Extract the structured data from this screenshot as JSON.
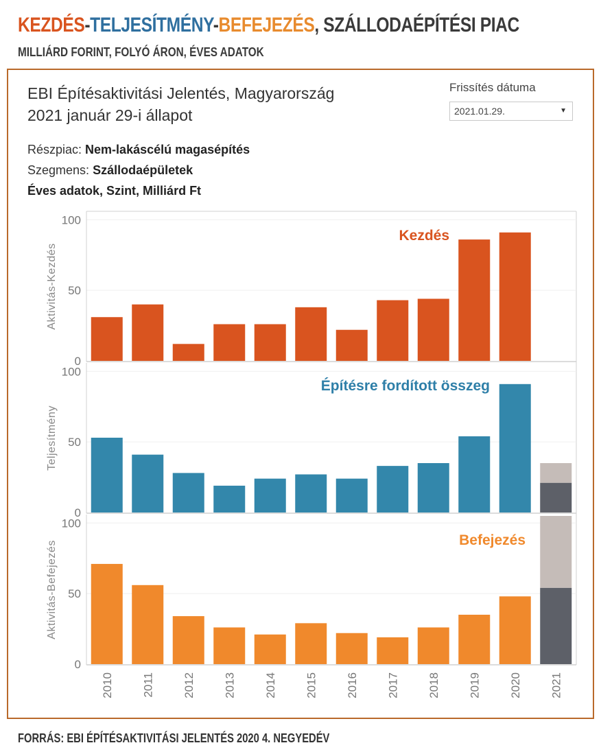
{
  "header": {
    "title_parts": [
      {
        "text": "KEZDÉS",
        "color": "#d9541f"
      },
      {
        "text": "-",
        "color": "#3a3a3a"
      },
      {
        "text": "TELJESÍTMÉNY",
        "color": "#2f6f9f"
      },
      {
        "text": "-",
        "color": "#3a3a3a"
      },
      {
        "text": "BEFEJEZÉS",
        "color": "#e88b2e"
      },
      {
        "text": ", SZÁLLODAÉPÍTÉSI PIAC",
        "color": "#3a3a3a"
      }
    ],
    "subtitle": "MILLIÁRD FORINT, FOLYÓ ÁRON, ÉVES ADATOK"
  },
  "report": {
    "title_line1": "EBI Építésaktivitási Jelentés, Magyarország",
    "title_line2": "2021 január 29-i állapot",
    "update_label": "Frissítés dátuma",
    "update_value": "2021.01.29.",
    "subsector_label": "Részpiac:",
    "subsector_value": "Nem-lakáscélú magasépítés",
    "segment_label": "Szegmens:",
    "segment_value": "Szállodaépületek",
    "units_line": "Éves adatok, Szint, Milliárd Ft"
  },
  "footer": {
    "source": "FORRÁS: EBI ÉPÍTÉSAKTIVITÁSI JELENTÉS 2020 4. NEGYEDÉV"
  },
  "chart_data": {
    "type": "bar",
    "categories": [
      "2010",
      "2011",
      "2012",
      "2013",
      "2014",
      "2015",
      "2016",
      "2017",
      "2018",
      "2019",
      "2020",
      "2021"
    ],
    "ylim": [
      0,
      105
    ],
    "yticks": [
      0,
      50,
      100
    ],
    "panels": [
      {
        "name": "kezdes",
        "ylabel": "Aktivitás-Kezdés",
        "label": "Kezdés",
        "color": "#d9541f",
        "label_color": "#d9541f",
        "values": [
          31,
          40,
          12,
          26,
          26,
          38,
          22,
          43,
          44,
          86,
          91,
          null
        ],
        "forecast_base": null,
        "forecast_total": null
      },
      {
        "name": "teljesitmeny",
        "ylabel": "Teljesítmény",
        "label": "Építésre fordított összeg",
        "color": "#3387ab",
        "label_color": "#2e7fa8",
        "values": [
          53,
          41,
          28,
          19,
          24,
          27,
          24,
          33,
          35,
          54,
          91,
          null
        ],
        "forecast_base": 21,
        "forecast_total": 35
      },
      {
        "name": "befejezes",
        "ylabel": "Aktivitás-Befejezés",
        "label": "Befejezés",
        "color": "#f0892c",
        "label_color": "#f0892c",
        "values": [
          71,
          56,
          34,
          26,
          21,
          29,
          22,
          19,
          26,
          35,
          48,
          null
        ],
        "forecast_base": 54,
        "forecast_total": 105
      }
    ],
    "forecast_base_color": "#5d6068",
    "forecast_extra_color": "#c5bcb8"
  }
}
